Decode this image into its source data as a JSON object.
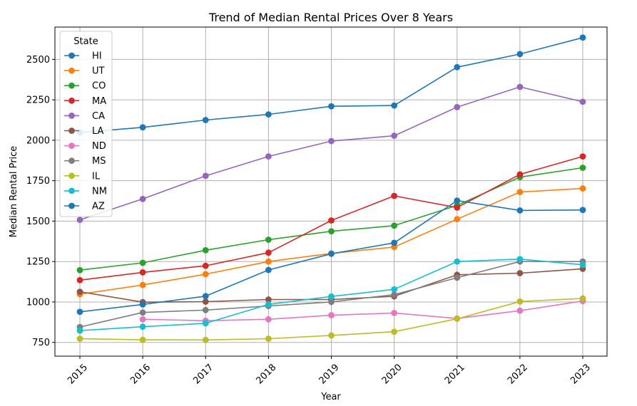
{
  "chart_data": {
    "type": "line",
    "title": "Trend of Median Rental Prices Over 8 Years",
    "xlabel": "Year",
    "ylabel": "Median Rental Price",
    "x": [
      "2015",
      "2016",
      "2017",
      "2018",
      "2019",
      "2020",
      "2021",
      "2022",
      "2023"
    ],
    "yticks": [
      750,
      1000,
      1250,
      1500,
      1750,
      2000,
      2250,
      2500
    ],
    "ylim": [
      665,
      2700
    ],
    "grid": true,
    "legend": {
      "title": "State",
      "placement": "top-left"
    },
    "series": [
      {
        "name": "HI",
        "color": "#1f77b4",
        "values": [
          2048,
          2080,
          2125,
          2160,
          2210,
          2215,
          2452,
          2533,
          2635
        ]
      },
      {
        "name": "UT",
        "color": "#ff7f0e",
        "values": [
          1048,
          1105,
          1172,
          1250,
          1300,
          1340,
          1512,
          1680,
          1702
        ]
      },
      {
        "name": "CO",
        "color": "#2ca02c",
        "values": [
          1197,
          1242,
          1320,
          1385,
          1437,
          1472,
          1597,
          1772,
          1830
        ]
      },
      {
        "name": "MA",
        "color": "#d62728",
        "values": [
          1135,
          1183,
          1224,
          1305,
          1504,
          1656,
          1584,
          1789,
          1900
        ]
      },
      {
        "name": "CA",
        "color": "#9467bd",
        "values": [
          1508,
          1637,
          1780,
          1900,
          1995,
          2028,
          2205,
          2330,
          2238
        ]
      },
      {
        "name": "LA",
        "color": "#8c564b",
        "values": [
          1063,
          999,
          1002,
          1015,
          1015,
          1035,
          1168,
          1178,
          1205
        ]
      },
      {
        "name": "ND",
        "color": "#e377c2",
        "values": [
          null,
          893,
          884,
          893,
          918,
          932,
          898,
          946,
          1006
        ]
      },
      {
        "name": "MS",
        "color": "#7f7f7f",
        "values": [
          845,
          935,
          950,
          975,
          1000,
          1045,
          1150,
          1250,
          1250
        ]
      },
      {
        "name": "IL",
        "color": "#bcbd22",
        "values": [
          773,
          766,
          765,
          773,
          793,
          816,
          896,
          1003,
          1022
        ]
      },
      {
        "name": "NM",
        "color": "#17becf",
        "values": [
          823,
          847,
          868,
          985,
          1034,
          1078,
          1250,
          1265,
          1230
        ]
      },
      {
        "name": "AZ",
        "color": "#1f77b4",
        "values": [
          939,
          985,
          1036,
          1198,
          1298,
          1366,
          1627,
          1566,
          1569
        ]
      }
    ]
  }
}
